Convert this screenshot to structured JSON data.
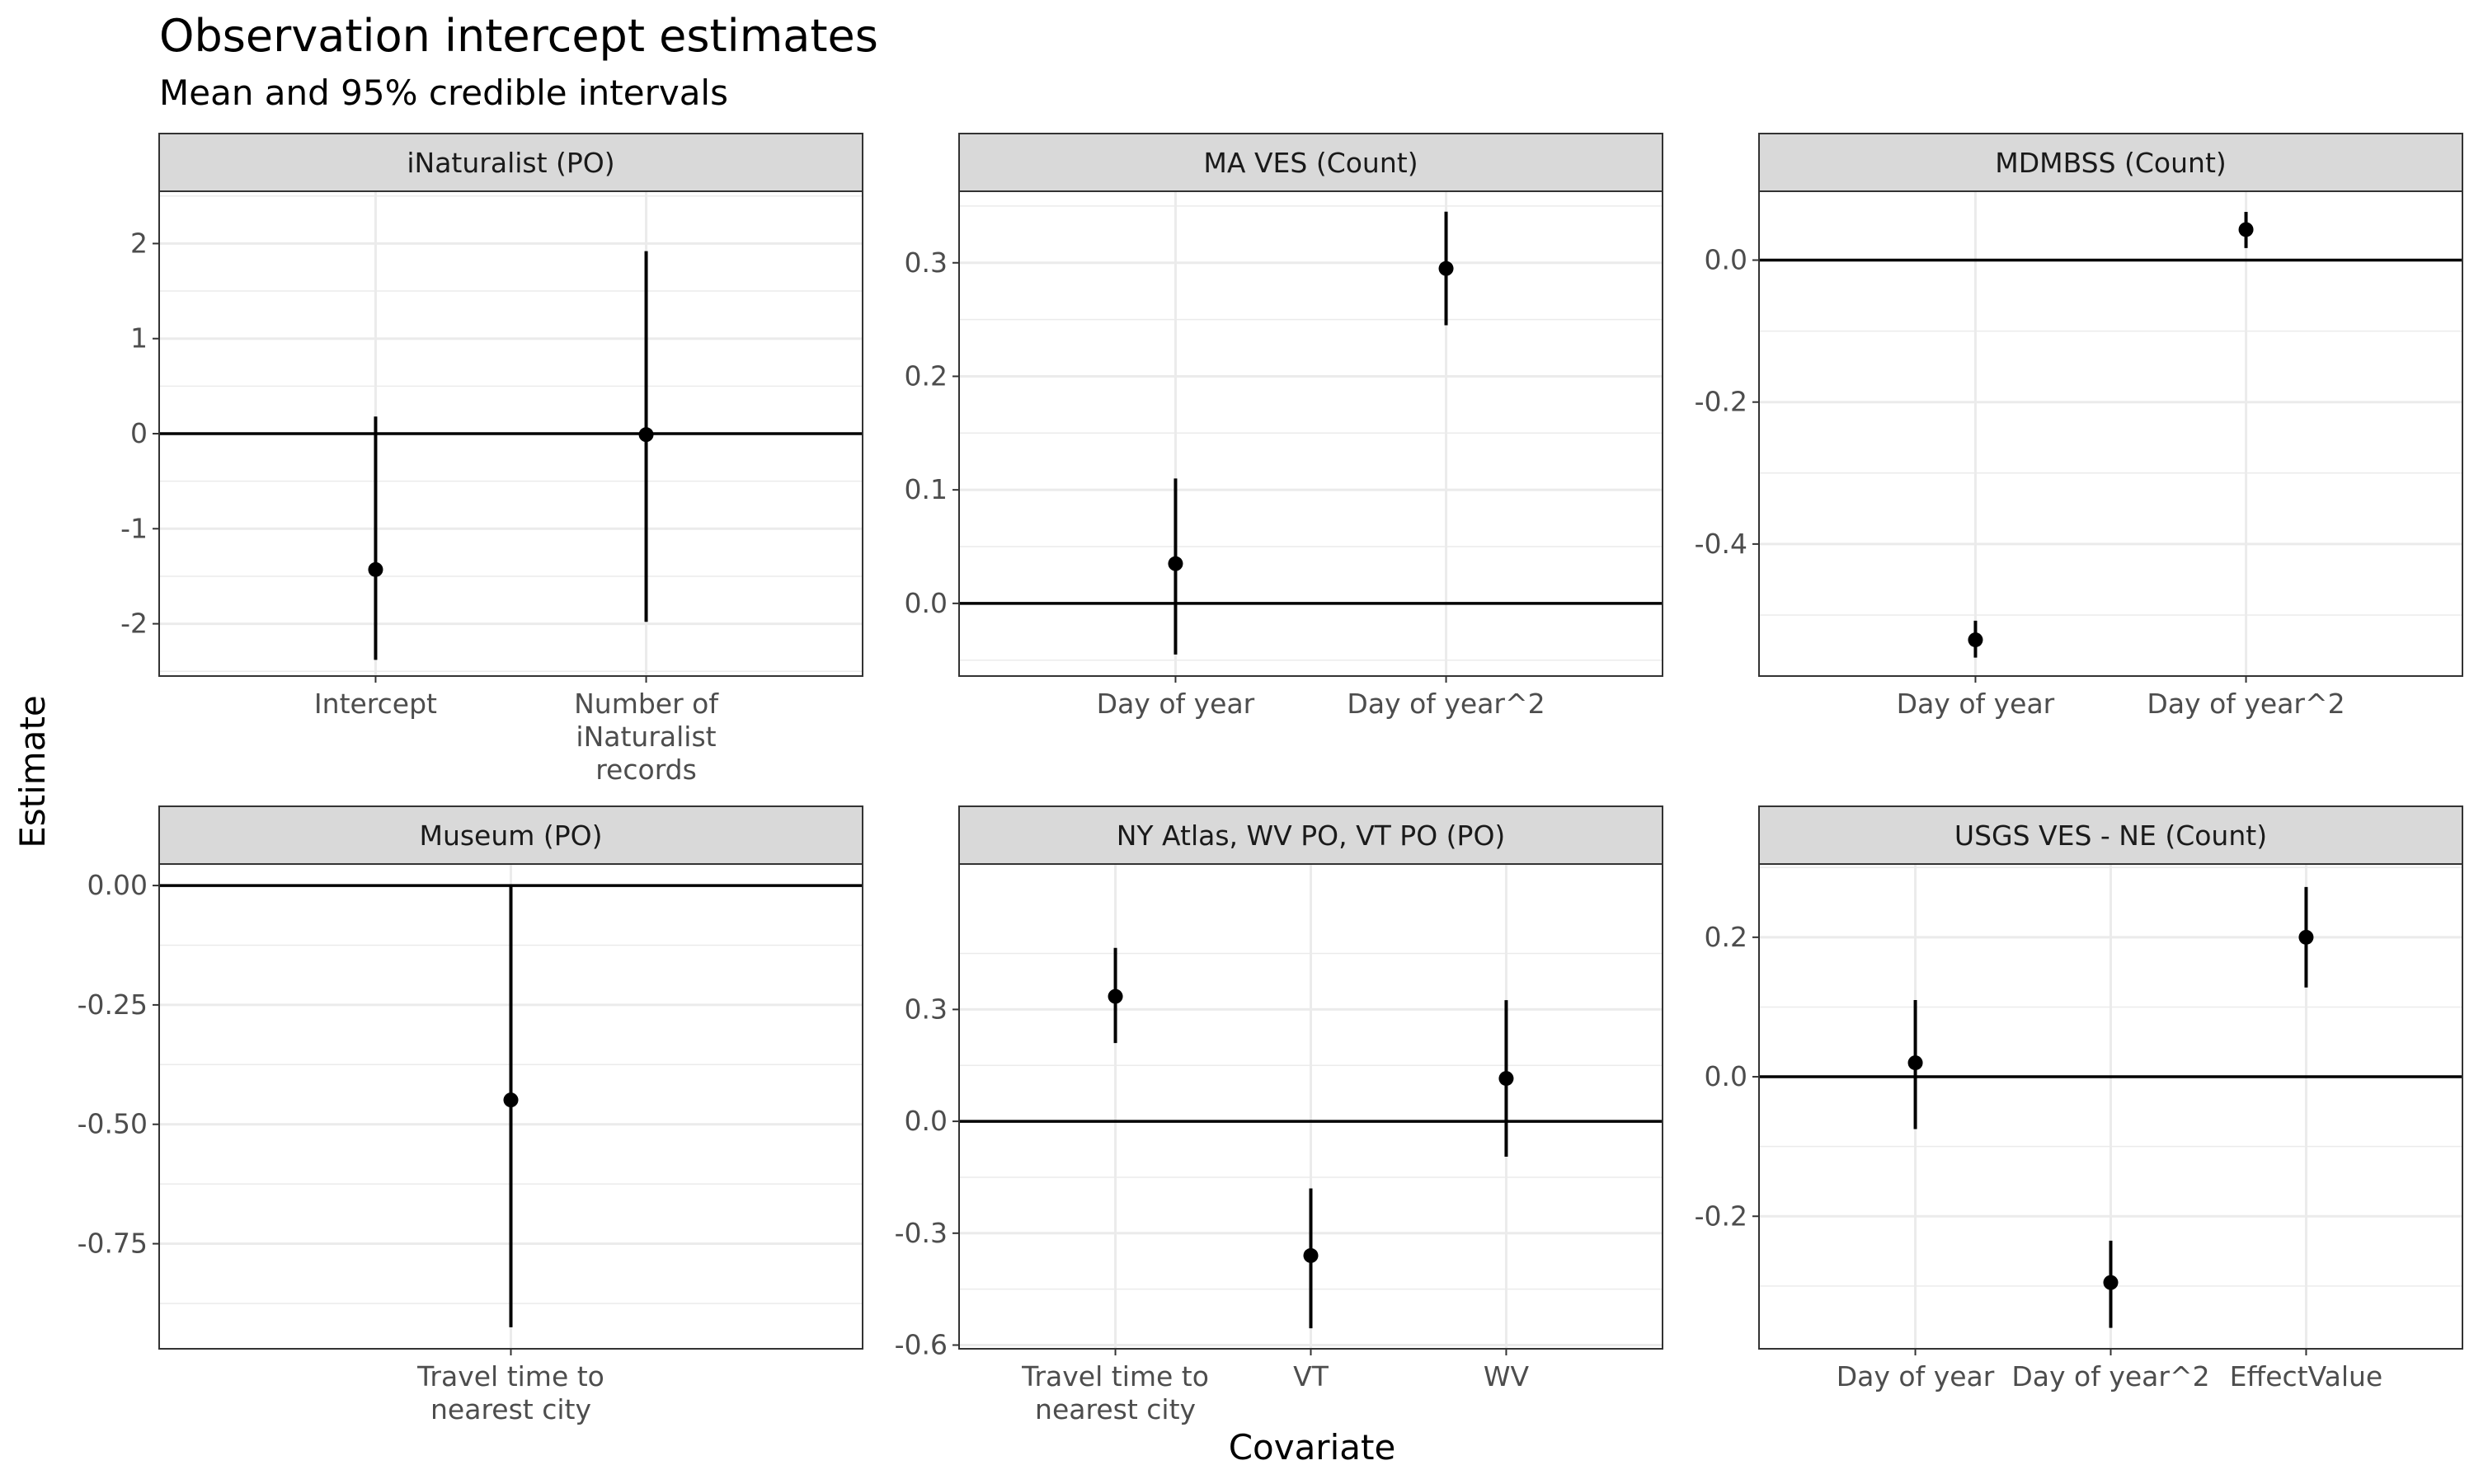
{
  "chart_data": {
    "type": "scatter",
    "title": "Observation intercept estimates",
    "subtitle": "Mean and 95% credible intervals",
    "xlabel": "Covariate",
    "ylabel": "Estimate",
    "grid": true,
    "facets": [
      {
        "strip": "iNaturalist (PO)",
        "ylim": [
          -2.55,
          2.55
        ],
        "ybreaks": [
          -2,
          -1,
          0,
          1,
          2
        ],
        "ybreak_labels": [
          "-2",
          "-1",
          "0",
          "1",
          "2"
        ],
        "categories": [
          [
            "Intercept"
          ],
          [
            "Number of",
            "iNaturalist",
            "records"
          ]
        ],
        "points": [
          {
            "mean": -1.43,
            "lower": -2.38,
            "upper": 0.18
          },
          {
            "mean": -0.01,
            "lower": -1.98,
            "upper": 1.92
          }
        ]
      },
      {
        "strip": "MA VES (Count)",
        "ylim": [
          -0.064,
          0.363
        ],
        "ybreaks": [
          0.0,
          0.1,
          0.2,
          0.3
        ],
        "ybreak_labels": [
          "0.0",
          "0.1",
          "0.2",
          "0.3"
        ],
        "categories": [
          [
            "Day of year"
          ],
          [
            "Day of year^2"
          ]
        ],
        "points": [
          {
            "mean": 0.035,
            "lower": -0.045,
            "upper": 0.11
          },
          {
            "mean": 0.295,
            "lower": 0.245,
            "upper": 0.345
          }
        ]
      },
      {
        "strip": "MDMBSS (Count)",
        "ylim": [
          -0.586,
          0.097
        ],
        "ybreaks": [
          -0.4,
          -0.2,
          0.0
        ],
        "ybreak_labels": [
          "-0.4",
          "-0.2",
          "0.0"
        ],
        "categories": [
          [
            "Day of year"
          ],
          [
            "Day of year^2"
          ]
        ],
        "points": [
          {
            "mean": -0.535,
            "lower": -0.56,
            "upper": -0.508
          },
          {
            "mean": 0.043,
            "lower": 0.017,
            "upper": 0.068
          }
        ]
      },
      {
        "strip": "Museum (PO)",
        "ylim": [
          -0.97,
          0.045
        ],
        "ybreaks": [
          -0.75,
          -0.5,
          -0.25,
          0.0
        ],
        "ybreak_labels": [
          "-0.75",
          "-0.50",
          "-0.25",
          "0.00"
        ],
        "categories": [
          [
            "Travel time to",
            "nearest city"
          ]
        ],
        "points": [
          {
            "mean": -0.449,
            "lower": -0.925,
            "upper": 0.0
          }
        ]
      },
      {
        "strip": "NY Atlas, WV PO, VT PO (PO)",
        "ylim": [
          -0.61,
          0.69
        ],
        "ybreaks": [
          -0.6,
          -0.3,
          0.0,
          0.3
        ],
        "ybreak_labels": [
          "-0.6",
          "-0.3",
          "0.0",
          "0.3"
        ],
        "categories": [
          [
            "Travel time to",
            "nearest city"
          ],
          [
            "VT"
          ],
          [
            "WV"
          ]
        ],
        "points": [
          {
            "mean": 0.335,
            "lower": 0.21,
            "upper": 0.465
          },
          {
            "mean": -0.36,
            "lower": -0.555,
            "upper": -0.18
          },
          {
            "mean": 0.115,
            "lower": -0.095,
            "upper": 0.325
          }
        ]
      },
      {
        "strip": "USGS VES - NE (Count)",
        "ylim": [
          -0.39,
          0.305
        ],
        "ybreaks": [
          -0.2,
          0.0,
          0.2
        ],
        "ybreak_labels": [
          "-0.2",
          "0.0",
          "0.2"
        ],
        "categories": [
          [
            "Day of year"
          ],
          [
            "Day of year^2"
          ],
          [
            "EffectValue"
          ]
        ],
        "points": [
          {
            "mean": 0.02,
            "lower": -0.075,
            "upper": 0.11
          },
          {
            "mean": -0.295,
            "lower": -0.36,
            "upper": -0.235
          },
          {
            "mean": 0.2,
            "lower": 0.128,
            "upper": 0.272
          }
        ]
      }
    ]
  }
}
